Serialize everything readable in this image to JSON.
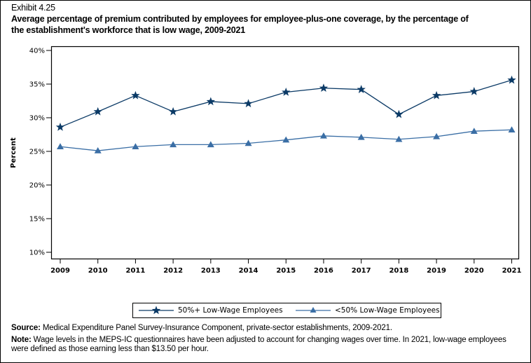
{
  "header": {
    "exhibit": "Exhibit 4.25",
    "title_line1": "Average percentage of premium contributed by employees for employee-plus-one coverage, by the percentage of",
    "title_line2": "the establishment's workforce that is low wage, 2009-2021"
  },
  "chart_data": {
    "type": "line",
    "title": "Average percentage of premium contributed by employees for employee-plus-one coverage, by the percentage of the establishment's workforce that is low wage, 2009-2021",
    "xlabel": "",
    "ylabel": "Percent",
    "x": [
      "2009",
      "2010",
      "2011",
      "2012",
      "2013",
      "2014",
      "2015",
      "2016",
      "2017",
      "2018",
      "2019",
      "2020",
      "2021"
    ],
    "ylim": [
      10,
      40
    ],
    "yticks": [
      10,
      15,
      20,
      25,
      30,
      35,
      40
    ],
    "ytick_labels": [
      "10%",
      "15%",
      "20%",
      "25%",
      "30%",
      "35%",
      "40%"
    ],
    "grid": false,
    "legend_position": "bottom-center",
    "series": [
      {
        "name": "50%+ Low-Wage Employees",
        "marker": "star",
        "color": "#0b3a66",
        "values": [
          28.6,
          30.9,
          33.3,
          30.9,
          32.4,
          32.1,
          33.8,
          34.4,
          34.2,
          30.5,
          33.3,
          33.9,
          35.6
        ]
      },
      {
        "name": "<50% Low-Wage Employees",
        "marker": "triangle",
        "color": "#3a6ea5",
        "values": [
          25.7,
          25.1,
          25.7,
          26.0,
          26.0,
          26.2,
          26.7,
          27.3,
          27.1,
          26.8,
          27.2,
          28.0,
          28.2
        ]
      }
    ]
  },
  "footer": {
    "source_label": "Source:",
    "source_text": " Medical Expenditure Panel Survey-Insurance Component, private-sector establishments, 2009-2021.",
    "note_label": "Note:",
    "note_text": " Wage levels in the MEPS-IC questionnaires have been adjusted to account for changing wages over time.  In 2021, low-wage employees were defined as those earning less than $13.50 per hour."
  }
}
